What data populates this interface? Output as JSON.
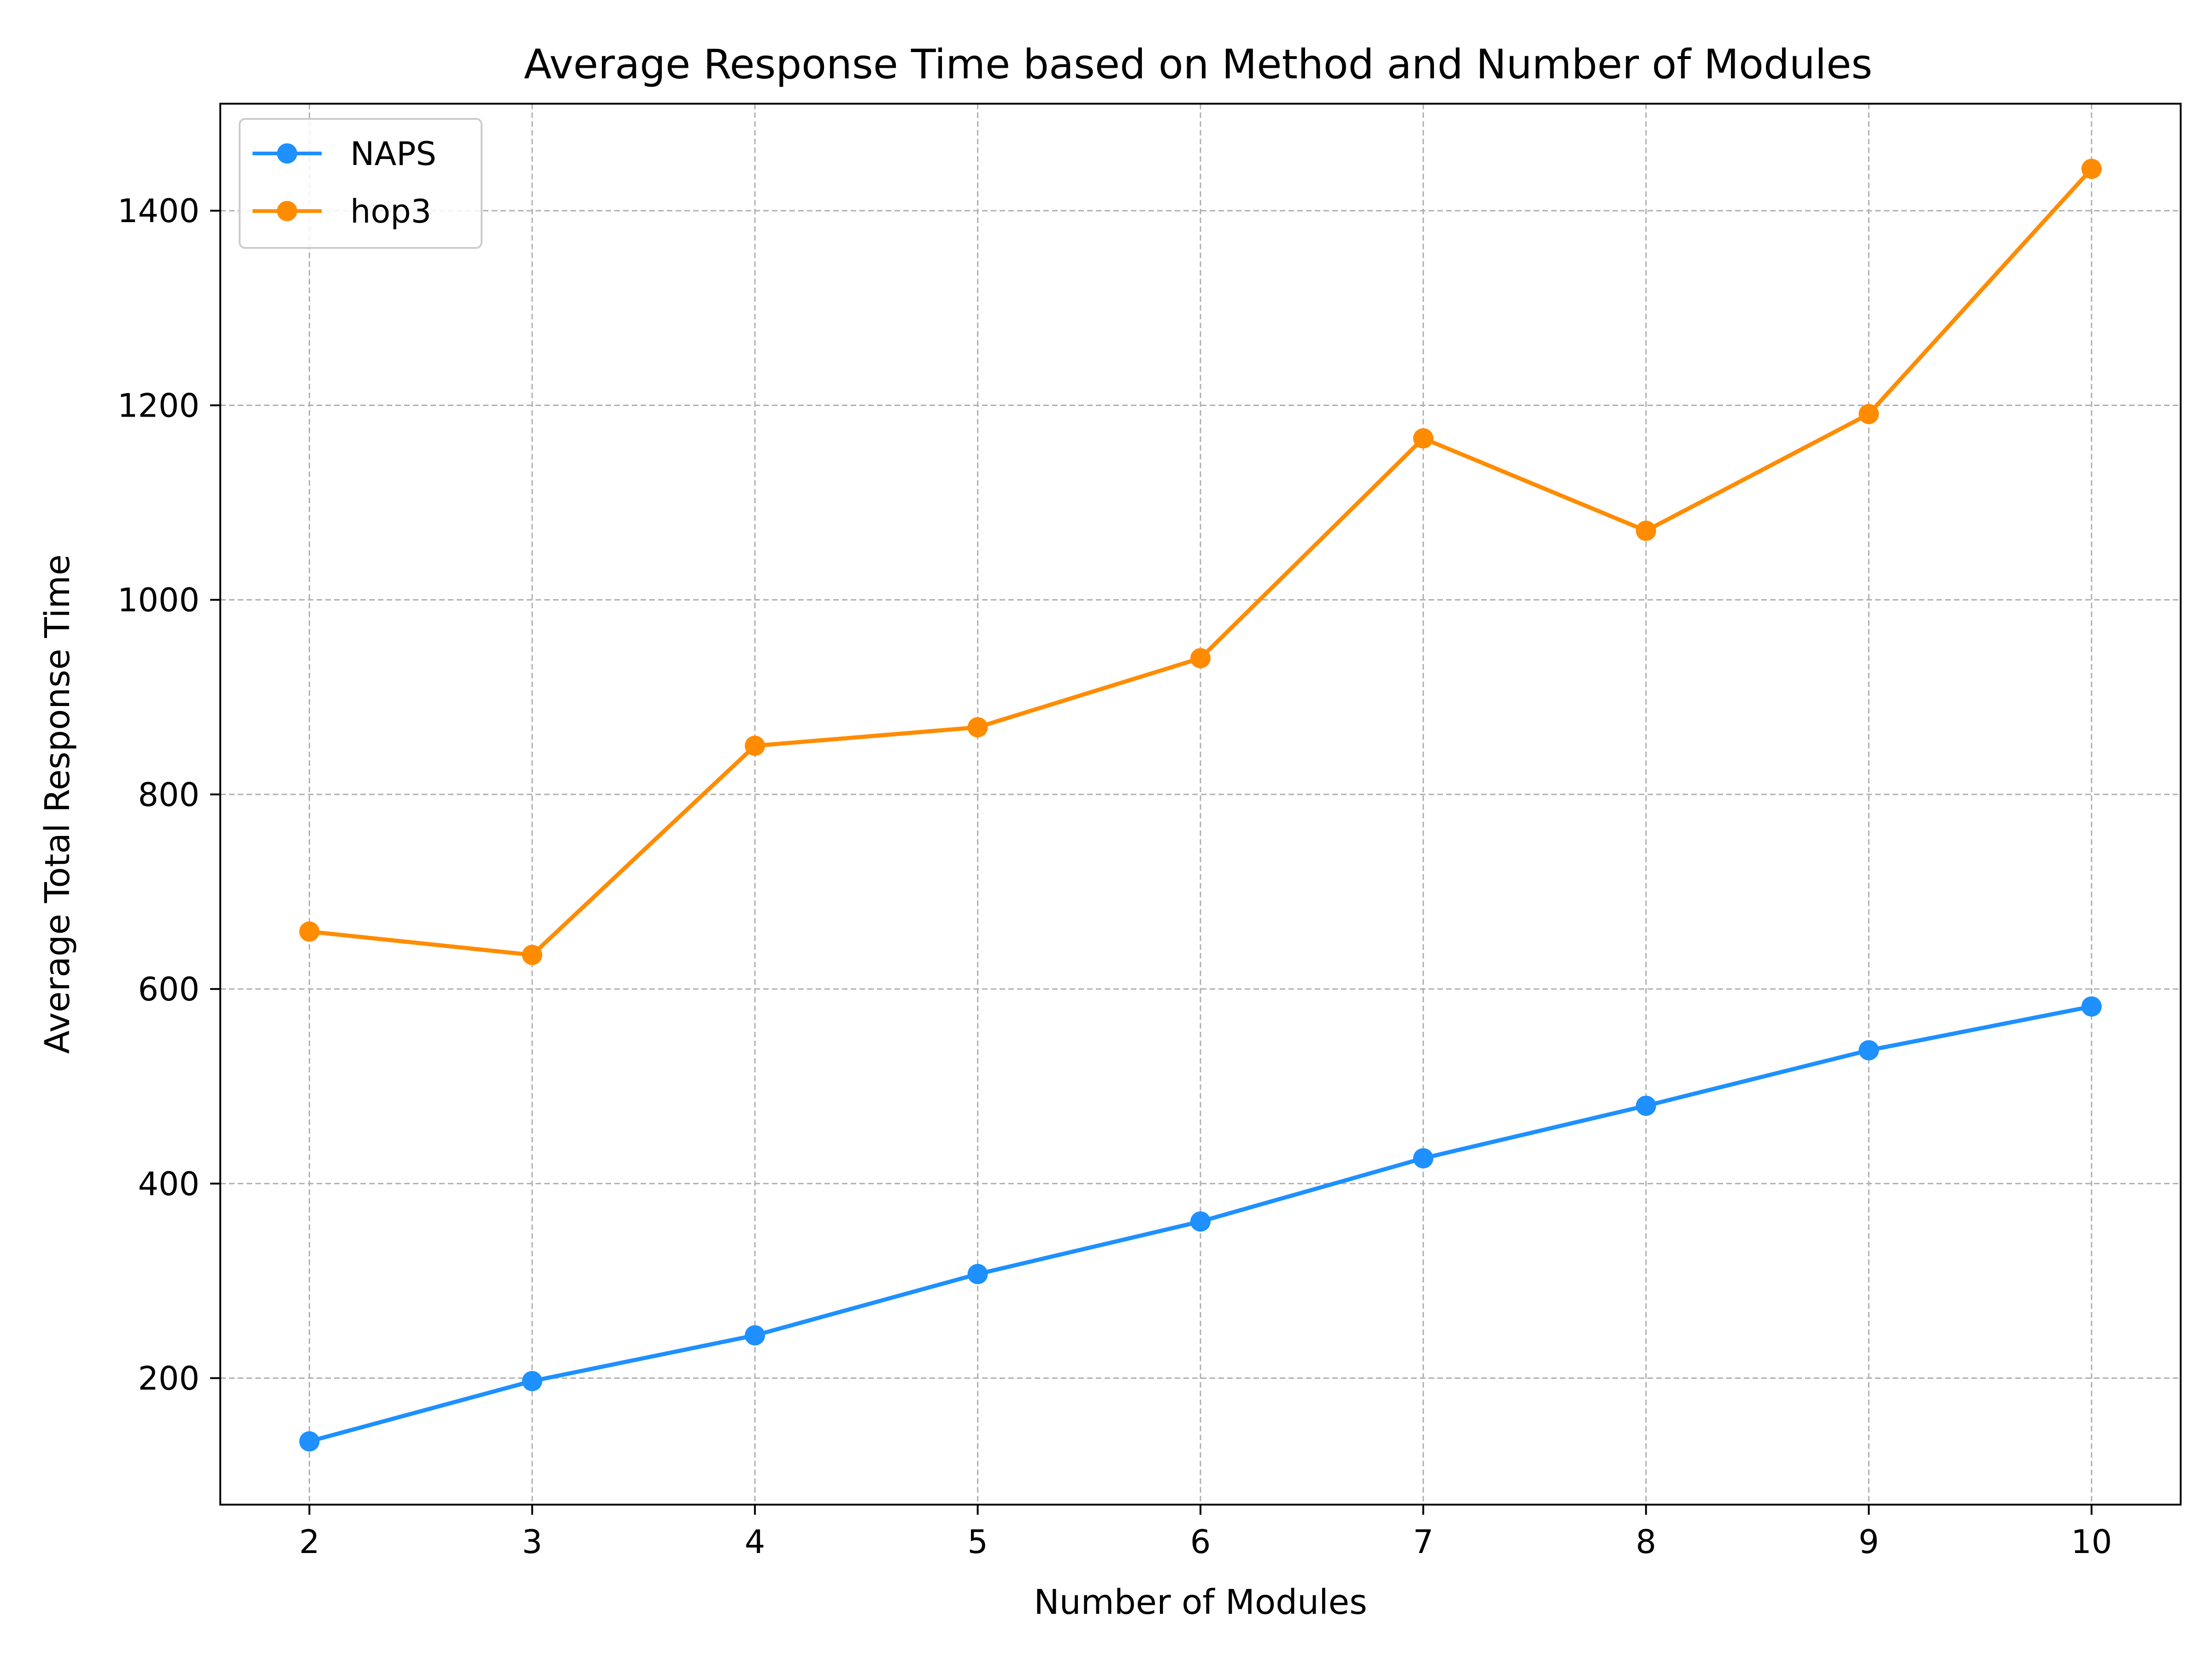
{
  "chart_data": {
    "type": "line",
    "title": "Average Response Time based on Method and Number of Modules",
    "xlabel": "Number of Modules",
    "ylabel": "Average Total Response Time",
    "x": [
      2,
      3,
      4,
      5,
      6,
      7,
      8,
      9,
      10
    ],
    "xlim": [
      1.6,
      10.4
    ],
    "ylim": [
      70,
      1510
    ],
    "xticks": [
      2,
      3,
      4,
      5,
      6,
      7,
      8,
      9,
      10
    ],
    "yticks": [
      200,
      400,
      600,
      800,
      1000,
      1200,
      1400
    ],
    "grid": true,
    "legend_position": "top-left",
    "series": [
      {
        "name": "NAPS",
        "color": "#1e90ff",
        "values": [
          135,
          197,
          244,
          307,
          361,
          426,
          480,
          537,
          582
        ]
      },
      {
        "name": "hop3",
        "color": "#ff8c00",
        "values": [
          659,
          635,
          850,
          869,
          940,
          1166,
          1071,
          1191,
          1443
        ]
      }
    ]
  }
}
